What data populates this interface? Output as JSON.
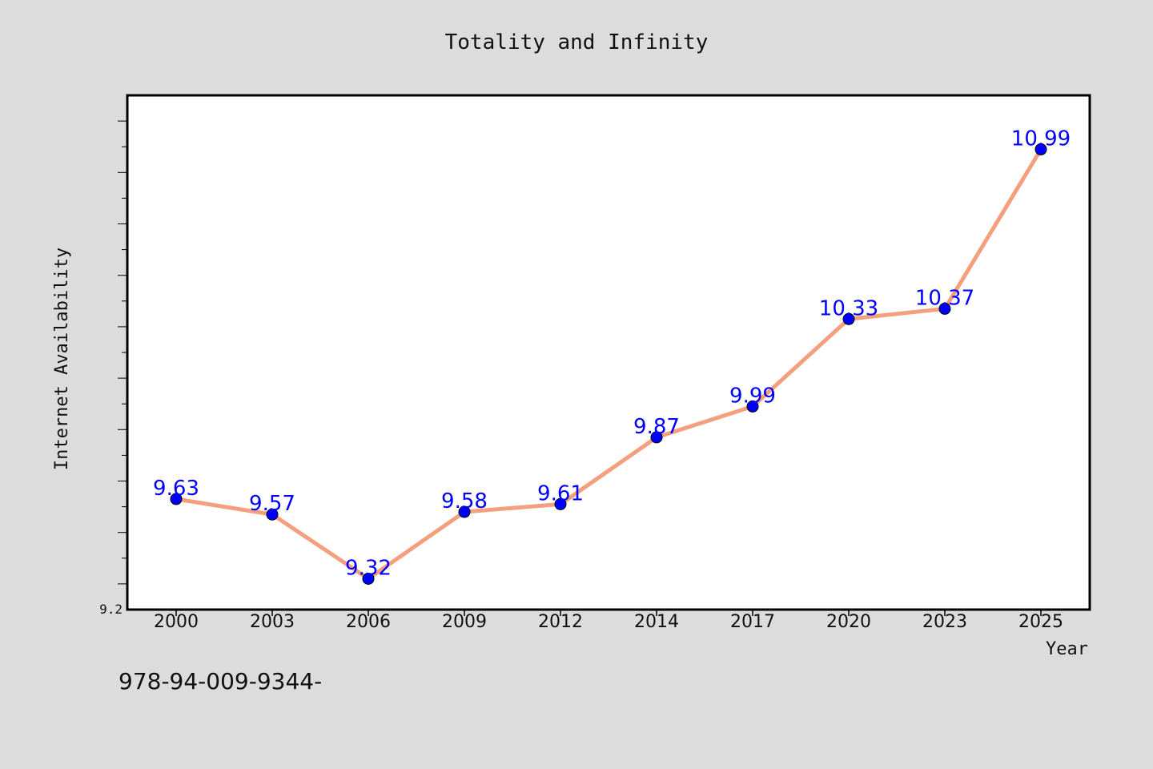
{
  "chart_data": {
    "type": "line",
    "title": "Totality and Infinity",
    "xlabel": "Year",
    "ylabel": "Internet Availability",
    "categories": [
      "2000",
      "2003",
      "2006",
      "2009",
      "2012",
      "2014",
      "2017",
      "2020",
      "2023",
      "2025"
    ],
    "series": [
      {
        "values": [
          9.63,
          9.57,
          9.32,
          9.58,
          9.61,
          9.87,
          9.99,
          10.33,
          10.37,
          10.99
        ]
      }
    ],
    "data_labels": [
      "9.63",
      "9.57",
      "9.32",
      "9.58",
      "9.61",
      "9.87",
      "9.99",
      "10.33",
      "10.37",
      "10.99"
    ],
    "y_tick_labels": [
      "9.2"
    ],
    "ylim": [
      9.2,
      11.2
    ],
    "grid": false,
    "colors": {
      "line": "#f4a07f",
      "marker": "#0000ff",
      "label": "#0000ff",
      "background": "#dcdcdc",
      "plot_background": "#ffffff"
    }
  },
  "footer": {
    "isbn": "978-94-009-9344-"
  }
}
